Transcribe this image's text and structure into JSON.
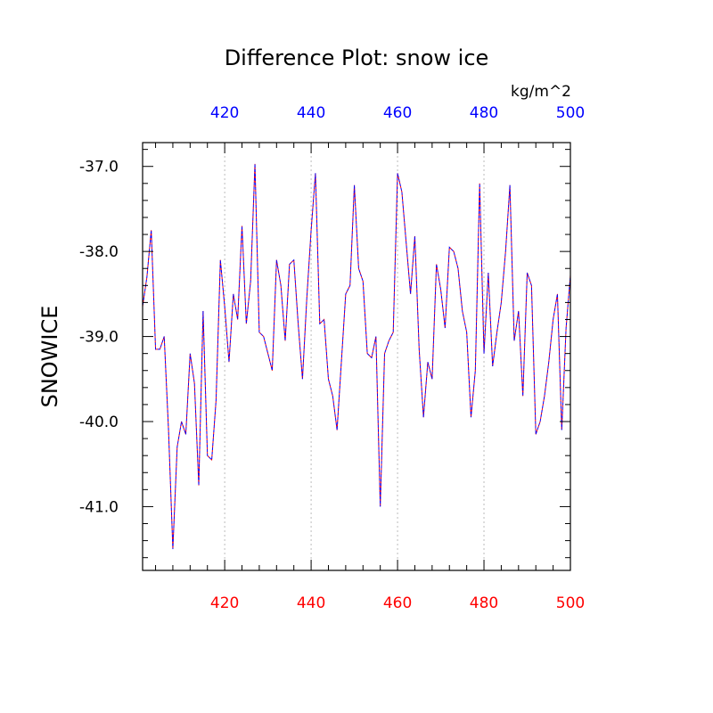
{
  "chart_data": {
    "type": "line",
    "title": "Difference Plot: snow ice",
    "units": "kg/m^2",
    "ylabel": "SNOWICE",
    "xlabel": "",
    "xlim": [
      401,
      500
    ],
    "ylim": [
      -41.75,
      -36.72
    ],
    "x_ticks": [
      420,
      440,
      460,
      480,
      500
    ],
    "x_tick_labels": [
      "420",
      "440",
      "460",
      "480",
      "500"
    ],
    "y_ticks": [
      -37.0,
      -38.0,
      -39.0,
      -40.0,
      -41.0
    ],
    "y_tick_labels": [
      "-37.0",
      "-38.0",
      "-39.0",
      "-40.0",
      "-41.0"
    ],
    "grid": "vertical dashed at major x ticks",
    "colors": {
      "top_tick_labels": "#0000ff",
      "bottom_tick_labels": "#ff0000",
      "series_a": "#0000ff",
      "series_b": "#ff0000",
      "grid": "#bbbbbb"
    },
    "x": [
      401,
      402,
      403,
      404,
      405,
      406,
      407,
      408,
      409,
      410,
      411,
      412,
      413,
      414,
      415,
      416,
      417,
      418,
      419,
      420,
      421,
      422,
      423,
      424,
      425,
      426,
      427,
      428,
      429,
      430,
      431,
      432,
      433,
      434,
      435,
      436,
      437,
      438,
      439,
      440,
      441,
      442,
      443,
      444,
      445,
      446,
      447,
      448,
      449,
      450,
      451,
      452,
      453,
      454,
      455,
      456,
      457,
      458,
      459,
      460,
      461,
      462,
      463,
      464,
      465,
      466,
      467,
      468,
      469,
      470,
      471,
      472,
      473,
      474,
      475,
      476,
      477,
      478,
      479,
      480,
      481,
      482,
      483,
      484,
      485,
      486,
      487,
      488,
      489,
      490,
      491,
      492,
      493,
      494,
      495,
      496,
      497,
      498,
      499,
      500
    ],
    "series": [
      {
        "values": [
          -38.65,
          -38.3,
          -37.75,
          -39.15,
          -39.15,
          -39.0,
          -40.1,
          -41.5,
          -40.3,
          -40.0,
          -40.15,
          -39.2,
          -39.55,
          -40.75,
          -38.7,
          -40.4,
          -40.45,
          -39.75,
          -38.1,
          -38.65,
          -39.3,
          -38.5,
          -38.8,
          -37.7,
          -38.85,
          -38.35,
          -36.97,
          -38.95,
          -39.0,
          -39.2,
          -39.4,
          -38.1,
          -38.4,
          -39.05,
          -38.15,
          -38.1,
          -38.85,
          -39.5,
          -38.55,
          -37.75,
          -37.08,
          -38.85,
          -38.8,
          -39.5,
          -39.7,
          -40.1,
          -39.3,
          -38.5,
          -38.4,
          -37.22,
          -38.2,
          -38.35,
          -39.2,
          -39.25,
          -39.0,
          -41.0,
          -39.2,
          -39.05,
          -38.95,
          -37.08,
          -37.3,
          -37.9,
          -38.5,
          -37.82,
          -39.15,
          -39.95,
          -39.3,
          -39.5,
          -38.15,
          -38.45,
          -38.9,
          -37.95,
          -38.0,
          -38.2,
          -38.7,
          -38.95,
          -39.95,
          -39.4,
          -37.2,
          -39.2,
          -38.25,
          -39.35,
          -38.95,
          -38.6,
          -38.0,
          -37.22,
          -39.05,
          -38.7,
          -39.7,
          -38.25,
          -38.4,
          -40.15,
          -40.0,
          -39.7,
          -39.3,
          -38.8,
          -38.5,
          -40.1,
          -38.9,
          -38.28
        ]
      }
    ]
  }
}
